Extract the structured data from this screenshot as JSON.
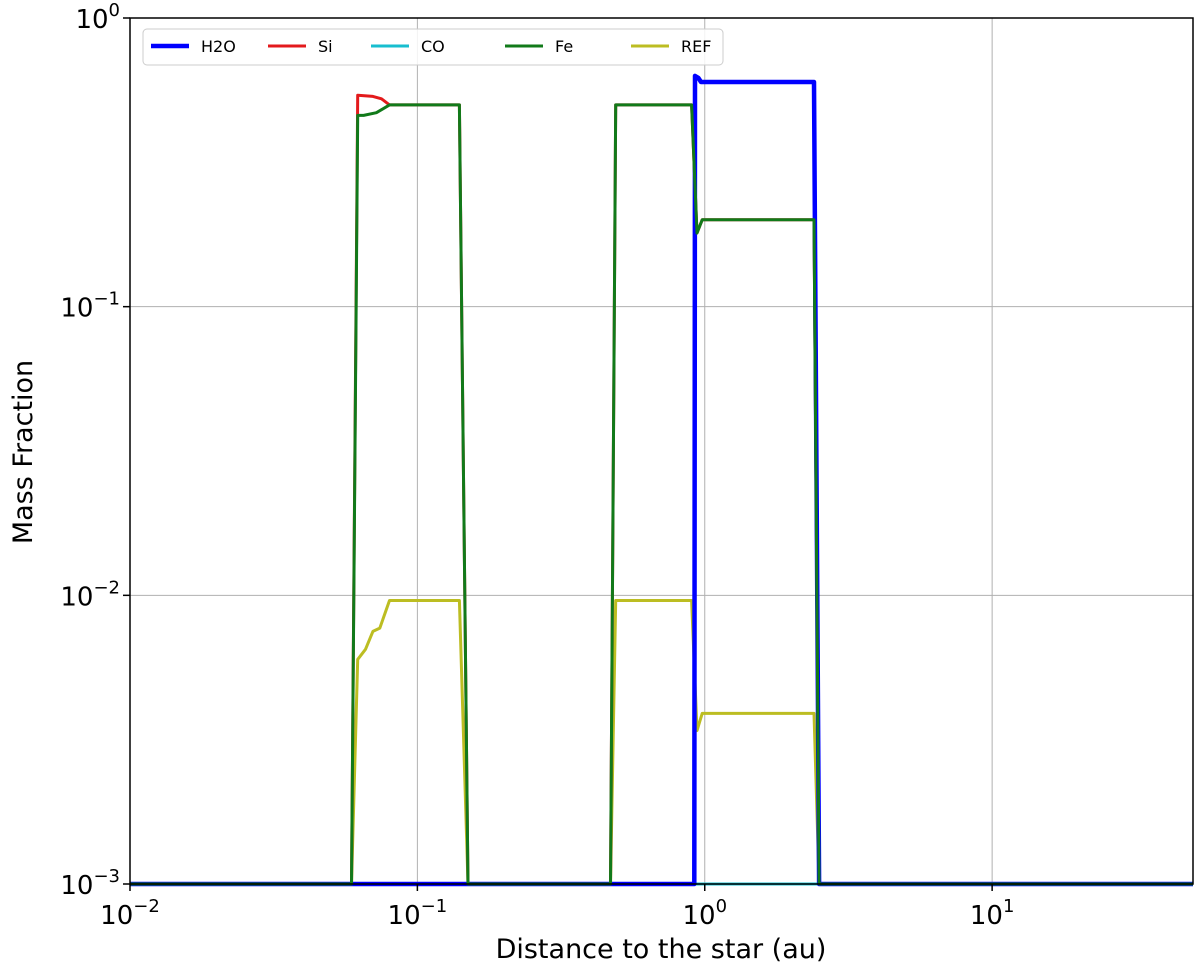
{
  "chart_data": {
    "type": "line",
    "xlabel": "Distance to the star (au)",
    "ylabel": "Mass Fraction",
    "xscale": "log",
    "yscale": "log",
    "xlim": [
      0.01,
      50
    ],
    "ylim": [
      0.001,
      1
    ],
    "x_ticks": [
      {
        "value": 0.01,
        "base": "10",
        "exp": "−2"
      },
      {
        "value": 0.1,
        "base": "10",
        "exp": "−1"
      },
      {
        "value": 1,
        "base": "10",
        "exp": "0"
      },
      {
        "value": 10,
        "base": "10",
        "exp": "1"
      }
    ],
    "y_ticks": [
      {
        "value": 0.001,
        "base": "10",
        "exp": "−3"
      },
      {
        "value": 0.01,
        "base": "10",
        "exp": "−2"
      },
      {
        "value": 0.1,
        "base": "10",
        "exp": "−1"
      },
      {
        "value": 1,
        "base": "10",
        "exp": "0"
      }
    ],
    "grid": true,
    "legend_position": "top-left",
    "legend_columns": 5,
    "series": [
      {
        "name": "H2O",
        "color": "#0000ff",
        "points": [
          [
            0.01,
            0.001
          ],
          [
            0.92,
            0.001
          ],
          [
            0.925,
            0.63
          ],
          [
            0.95,
            0.62
          ],
          [
            0.97,
            0.6
          ],
          [
            1.2,
            0.6
          ],
          [
            2.4,
            0.6
          ],
          [
            2.5,
            0.001
          ],
          [
            50,
            0.001
          ]
        ]
      },
      {
        "name": "Si",
        "color": "#e31a1c",
        "points": [
          [
            0.01,
            0.001
          ],
          [
            0.059,
            0.001
          ],
          [
            0.062,
            0.54
          ],
          [
            0.07,
            0.535
          ],
          [
            0.075,
            0.525
          ],
          [
            0.08,
            0.5
          ],
          [
            0.14,
            0.5
          ],
          [
            0.15,
            0.001
          ],
          [
            0.47,
            0.001
          ],
          [
            0.49,
            0.5
          ],
          [
            0.9,
            0.5
          ],
          [
            0.94,
            0.18
          ],
          [
            0.98,
            0.2
          ],
          [
            2.4,
            0.2
          ],
          [
            2.5,
            0.001
          ],
          [
            50,
            0.001
          ]
        ]
      },
      {
        "name": "CO",
        "color": "#17becf",
        "points": [
          [
            0.01,
            0.001
          ],
          [
            50,
            0.001
          ]
        ]
      },
      {
        "name": "Fe",
        "color": "#117a1a",
        "points": [
          [
            0.01,
            0.001
          ],
          [
            0.059,
            0.001
          ],
          [
            0.062,
            0.46
          ],
          [
            0.065,
            0.46
          ],
          [
            0.072,
            0.47
          ],
          [
            0.08,
            0.5
          ],
          [
            0.14,
            0.5
          ],
          [
            0.15,
            0.001
          ],
          [
            0.47,
            0.001
          ],
          [
            0.49,
            0.5
          ],
          [
            0.9,
            0.5
          ],
          [
            0.94,
            0.18
          ],
          [
            0.98,
            0.2
          ],
          [
            2.4,
            0.2
          ],
          [
            2.5,
            0.001
          ],
          [
            50,
            0.001
          ]
        ]
      },
      {
        "name": "REF",
        "color": "#bcbd22",
        "points": [
          [
            0.01,
            0.001
          ],
          [
            0.059,
            0.001
          ],
          [
            0.062,
            0.006
          ],
          [
            0.066,
            0.0065
          ],
          [
            0.07,
            0.0075
          ],
          [
            0.074,
            0.0077
          ],
          [
            0.08,
            0.0096
          ],
          [
            0.14,
            0.0096
          ],
          [
            0.15,
            0.001
          ],
          [
            0.47,
            0.001
          ],
          [
            0.49,
            0.0096
          ],
          [
            0.9,
            0.0096
          ],
          [
            0.94,
            0.0034
          ],
          [
            0.98,
            0.0039
          ],
          [
            2.4,
            0.0039
          ],
          [
            2.5,
            0.001
          ],
          [
            50,
            0.001
          ]
        ]
      }
    ]
  }
}
